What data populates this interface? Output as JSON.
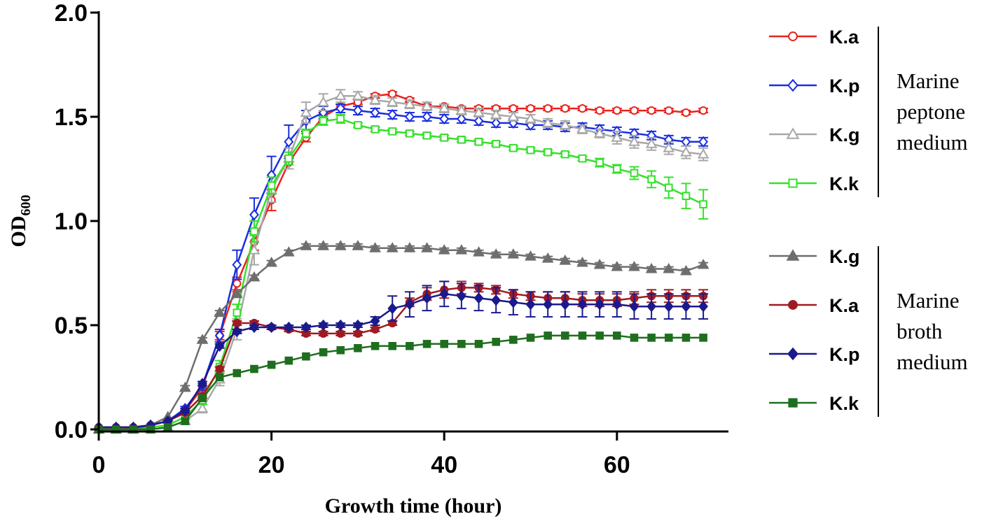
{
  "chart_data": {
    "type": "line",
    "title": "",
    "xlabel": "Growth time (hour)",
    "ylabel": {
      "main": "OD",
      "sub": "600"
    },
    "xlim": [
      0,
      72
    ],
    "ylim": [
      0,
      2.0
    ],
    "xticks": [
      "0",
      "20",
      "40",
      "60"
    ],
    "yticks": [
      "0.0",
      "0.5",
      "1.0",
      "1.5",
      "2.0"
    ],
    "legend_position": "right",
    "groups": [
      {
        "label_lines": [
          "Marine",
          "peptone",
          "medium"
        ],
        "series": [
          "Ka_MP",
          "Kp_MP",
          "Kg_MP",
          "Kk_MP"
        ]
      },
      {
        "label_lines": [
          "Marine",
          "broth",
          "medium"
        ],
        "series": [
          "Kg_MB",
          "Ka_MB",
          "Kp_MB",
          "Kk_MB"
        ]
      }
    ],
    "x": [
      0,
      2,
      4,
      6,
      8,
      10,
      12,
      14,
      16,
      18,
      20,
      22,
      24,
      26,
      28,
      30,
      32,
      34,
      36,
      38,
      40,
      42,
      44,
      46,
      48,
      50,
      52,
      54,
      56,
      58,
      60,
      62,
      64,
      66,
      68,
      70
    ],
    "series": [
      {
        "id": "Ka_MP",
        "name": "K.a",
        "color": "#e8231f",
        "marker": "circle",
        "filled": false,
        "values": [
          0.01,
          0.01,
          0.01,
          0.02,
          0.04,
          0.09,
          0.2,
          0.45,
          0.7,
          0.9,
          1.1,
          1.28,
          1.4,
          1.5,
          1.55,
          1.57,
          1.6,
          1.61,
          1.58,
          1.55,
          1.55,
          1.54,
          1.54,
          1.54,
          1.54,
          1.54,
          1.54,
          1.54,
          1.54,
          1.53,
          1.53,
          1.53,
          1.53,
          1.53,
          1.52,
          1.53
        ],
        "errors": [
          0,
          0,
          0,
          0,
          0,
          0,
          0.01,
          0.02,
          0.03,
          0.04,
          0.05,
          0.03,
          0.02,
          0.02,
          0.01,
          0.01,
          0.01,
          0.01,
          0.01,
          0.01,
          0.01,
          0.01,
          0.01,
          0.01,
          0.01,
          0.01,
          0.01,
          0.01,
          0.01,
          0.01,
          0.01,
          0.01,
          0.01,
          0.01,
          0.01,
          0.01
        ]
      },
      {
        "id": "Kp_MP",
        "name": "K.p",
        "color": "#1a2ee0",
        "marker": "diamond",
        "filled": false,
        "values": [
          0.01,
          0.01,
          0.01,
          0.02,
          0.04,
          0.1,
          0.21,
          0.45,
          0.79,
          1.03,
          1.22,
          1.38,
          1.48,
          1.52,
          1.54,
          1.53,
          1.52,
          1.51,
          1.5,
          1.5,
          1.49,
          1.49,
          1.48,
          1.47,
          1.47,
          1.46,
          1.46,
          1.45,
          1.45,
          1.44,
          1.43,
          1.42,
          1.41,
          1.39,
          1.38,
          1.38
        ],
        "errors": [
          0,
          0,
          0,
          0,
          0.01,
          0.01,
          0.02,
          0.03,
          0.07,
          0.08,
          0.09,
          0.08,
          0.05,
          0.03,
          0.02,
          0.02,
          0.02,
          0.02,
          0.02,
          0.02,
          0.02,
          0.02,
          0.02,
          0.02,
          0.02,
          0.02,
          0.02,
          0.02,
          0.02,
          0.02,
          0.02,
          0.02,
          0.02,
          0.02,
          0.02,
          0.02
        ]
      },
      {
        "id": "Kg_MP",
        "name": "K.g",
        "color": "#a8a8a8",
        "marker": "triangle",
        "filled": false,
        "values": [
          0.0,
          0.0,
          0.0,
          0.0,
          0.01,
          0.04,
          0.1,
          0.24,
          0.48,
          0.86,
          1.15,
          1.3,
          1.52,
          1.57,
          1.6,
          1.6,
          1.58,
          1.57,
          1.56,
          1.55,
          1.54,
          1.53,
          1.52,
          1.51,
          1.5,
          1.49,
          1.47,
          1.46,
          1.44,
          1.42,
          1.4,
          1.38,
          1.37,
          1.35,
          1.33,
          1.32
        ],
        "errors": [
          0,
          0,
          0,
          0,
          0,
          0.01,
          0.02,
          0.03,
          0.05,
          0.07,
          0.06,
          0.05,
          0.05,
          0.04,
          0.03,
          0.02,
          0.02,
          0.02,
          0.02,
          0.02,
          0.02,
          0.02,
          0.02,
          0.02,
          0.02,
          0.02,
          0.02,
          0.02,
          0.02,
          0.02,
          0.03,
          0.03,
          0.03,
          0.03,
          0.03,
          0.03
        ]
      },
      {
        "id": "Kk_MP",
        "name": "K.k",
        "color": "#36e02c",
        "marker": "square",
        "filled": false,
        "values": [
          0.0,
          0.0,
          0.0,
          0.01,
          0.02,
          0.06,
          0.14,
          0.3,
          0.56,
          0.95,
          1.17,
          1.3,
          1.42,
          1.48,
          1.49,
          1.46,
          1.44,
          1.43,
          1.42,
          1.41,
          1.4,
          1.39,
          1.38,
          1.37,
          1.35,
          1.34,
          1.33,
          1.32,
          1.3,
          1.28,
          1.25,
          1.23,
          1.2,
          1.16,
          1.12,
          1.08
        ],
        "errors": [
          0,
          0,
          0,
          0,
          0,
          0.01,
          0.02,
          0.03,
          0.04,
          0.05,
          0.04,
          0.03,
          0.02,
          0.02,
          0.02,
          0.01,
          0.01,
          0.01,
          0.01,
          0.01,
          0.01,
          0.01,
          0.01,
          0.01,
          0.01,
          0.01,
          0.01,
          0.01,
          0.01,
          0.02,
          0.02,
          0.03,
          0.04,
          0.05,
          0.06,
          0.07
        ]
      },
      {
        "id": "Kg_MB",
        "name": "K.g",
        "color": "#6e6e6e",
        "marker": "triangle",
        "filled": true,
        "values": [
          0.0,
          0.0,
          0.0,
          0.02,
          0.06,
          0.2,
          0.43,
          0.56,
          0.65,
          0.73,
          0.8,
          0.85,
          0.88,
          0.88,
          0.88,
          0.88,
          0.87,
          0.87,
          0.87,
          0.87,
          0.86,
          0.86,
          0.85,
          0.84,
          0.84,
          0.83,
          0.82,
          0.81,
          0.8,
          0.79,
          0.78,
          0.78,
          0.77,
          0.77,
          0.76,
          0.79
        ],
        "errors": [
          0,
          0,
          0,
          0,
          0,
          0.01,
          0.01,
          0.01,
          0.01,
          0.01,
          0.01,
          0.01,
          0.01,
          0.01,
          0.01,
          0.01,
          0.01,
          0.01,
          0.01,
          0.01,
          0.01,
          0.01,
          0.01,
          0.01,
          0.01,
          0.01,
          0.01,
          0.01,
          0.01,
          0.01,
          0.01,
          0.01,
          0.01,
          0.01,
          0.01,
          0.01
        ]
      },
      {
        "id": "Ka_MB",
        "name": "K.a",
        "color": "#a01a22",
        "marker": "circle",
        "filled": true,
        "values": [
          0.01,
          0.01,
          0.01,
          0.02,
          0.04,
          0.08,
          0.16,
          0.29,
          0.51,
          0.51,
          0.49,
          0.48,
          0.46,
          0.46,
          0.46,
          0.46,
          0.48,
          0.51,
          0.61,
          0.65,
          0.67,
          0.68,
          0.68,
          0.67,
          0.65,
          0.64,
          0.63,
          0.63,
          0.62,
          0.62,
          0.62,
          0.63,
          0.64,
          0.64,
          0.64,
          0.64
        ],
        "errors": [
          0,
          0,
          0,
          0,
          0,
          0.01,
          0.01,
          0.01,
          0.01,
          0.01,
          0.01,
          0.01,
          0.01,
          0.01,
          0.01,
          0.01,
          0.01,
          0.01,
          0.02,
          0.03,
          0.04,
          0.03,
          0.02,
          0.02,
          0.02,
          0.02,
          0.03,
          0.03,
          0.03,
          0.03,
          0.03,
          0.03,
          0.03,
          0.03,
          0.03,
          0.03
        ]
      },
      {
        "id": "Kp_MB",
        "name": "K.p",
        "color": "#1a1a8c",
        "marker": "diamond",
        "filled": true,
        "values": [
          0.01,
          0.01,
          0.01,
          0.02,
          0.04,
          0.09,
          0.22,
          0.4,
          0.47,
          0.49,
          0.49,
          0.49,
          0.49,
          0.5,
          0.5,
          0.5,
          0.52,
          0.58,
          0.6,
          0.63,
          0.65,
          0.64,
          0.63,
          0.62,
          0.61,
          0.6,
          0.6,
          0.6,
          0.6,
          0.6,
          0.6,
          0.59,
          0.59,
          0.59,
          0.59,
          0.59
        ],
        "errors": [
          0,
          0,
          0,
          0,
          0,
          0.01,
          0.01,
          0.01,
          0.01,
          0.01,
          0.01,
          0.01,
          0.01,
          0.01,
          0.01,
          0.01,
          0.02,
          0.06,
          0.06,
          0.06,
          0.06,
          0.06,
          0.06,
          0.06,
          0.06,
          0.06,
          0.06,
          0.06,
          0.06,
          0.06,
          0.06,
          0.06,
          0.06,
          0.06,
          0.06,
          0.06
        ]
      },
      {
        "id": "Kk_MB",
        "name": "K.k",
        "color": "#1f6e1f",
        "marker": "square",
        "filled": true,
        "values": [
          0.0,
          0.0,
          0.0,
          0.0,
          0.01,
          0.04,
          0.15,
          0.25,
          0.27,
          0.29,
          0.31,
          0.33,
          0.35,
          0.37,
          0.38,
          0.39,
          0.4,
          0.4,
          0.4,
          0.41,
          0.41,
          0.41,
          0.41,
          0.42,
          0.43,
          0.44,
          0.45,
          0.45,
          0.45,
          0.45,
          0.45,
          0.44,
          0.44,
          0.44,
          0.44,
          0.44
        ],
        "errors": [
          0,
          0,
          0,
          0,
          0,
          0,
          0,
          0,
          0,
          0,
          0,
          0,
          0,
          0,
          0,
          0,
          0,
          0,
          0,
          0,
          0,
          0,
          0,
          0,
          0,
          0,
          0,
          0,
          0,
          0,
          0,
          0,
          0,
          0,
          0,
          0
        ]
      }
    ]
  }
}
